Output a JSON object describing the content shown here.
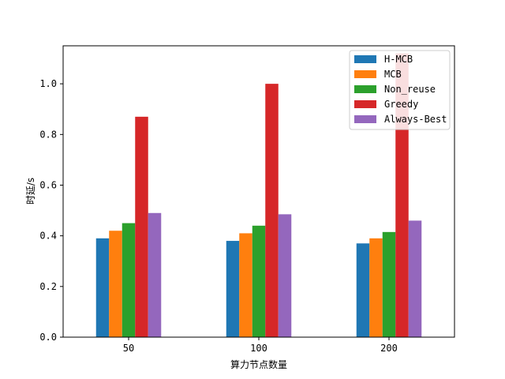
{
  "chart_data": {
    "type": "bar",
    "title": "",
    "xlabel": "算力节点数量",
    "ylabel": "时延/s",
    "categories": [
      "50",
      "100",
      "200"
    ],
    "ylim": [
      0,
      1.15
    ],
    "yticks": [
      "0.0",
      "0.2",
      "0.4",
      "0.6",
      "0.8",
      "1.0"
    ],
    "legend_position": "top-right",
    "grid": false,
    "series": [
      {
        "name": "H-MCB",
        "color": "#1f77b4",
        "values": [
          0.39,
          0.38,
          0.37
        ]
      },
      {
        "name": "MCB",
        "color": "#ff7f0e",
        "values": [
          0.42,
          0.41,
          0.39
        ]
      },
      {
        "name": "Non_reuse",
        "color": "#2ca02c",
        "values": [
          0.45,
          0.44,
          0.415
        ]
      },
      {
        "name": "Greedy",
        "color": "#d62728",
        "values": [
          0.87,
          1.0,
          1.12
        ]
      },
      {
        "name": "Always-Best",
        "color": "#9467bd",
        "values": [
          0.49,
          0.485,
          0.46
        ]
      }
    ]
  }
}
